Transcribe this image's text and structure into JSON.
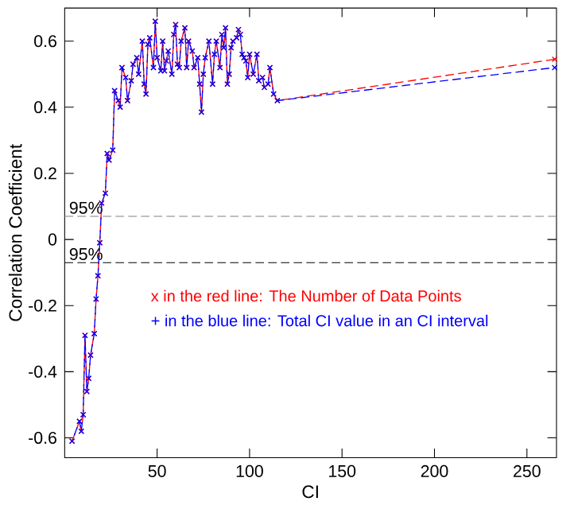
{
  "chart_data": {
    "type": "line",
    "xlabel": "CI",
    "ylabel": "Correlation Coefficient",
    "x": [
      4,
      8,
      9,
      10,
      11,
      12,
      13,
      14,
      16,
      17,
      18,
      19,
      20,
      22,
      23,
      24,
      26,
      27,
      29,
      30,
      31,
      33,
      34,
      36,
      37,
      39,
      40,
      42,
      43,
      44,
      45,
      46,
      48,
      49,
      50,
      52,
      53,
      54,
      55,
      56,
      58,
      59,
      60,
      61,
      62,
      63,
      65,
      66,
      67,
      69,
      70,
      72,
      73,
      74,
      75,
      76,
      78,
      80,
      81,
      82,
      84,
      85,
      86,
      87,
      88,
      89,
      90,
      91,
      93,
      94,
      95,
      96,
      97,
      98,
      99,
      100,
      102,
      104,
      105,
      107,
      108,
      110,
      111,
      113,
      115,
      265
    ],
    "series": [
      {
        "name": "x in the red line:  The Number of Data Points",
        "color": "#ff0000",
        "marker": "cross",
        "line_style": "dashed",
        "values": [
          -0.61,
          -0.55,
          -0.58,
          -0.53,
          -0.29,
          -0.46,
          -0.42,
          -0.35,
          -0.285,
          -0.18,
          -0.11,
          -0.01,
          0.11,
          0.14,
          0.26,
          0.24,
          0.27,
          0.45,
          0.42,
          0.4,
          0.52,
          0.49,
          0.42,
          0.48,
          0.53,
          0.55,
          0.5,
          0.6,
          0.47,
          0.44,
          0.59,
          0.61,
          0.52,
          0.66,
          0.55,
          0.51,
          0.6,
          0.51,
          0.54,
          0.57,
          0.5,
          0.62,
          0.65,
          0.53,
          0.52,
          0.6,
          0.64,
          0.52,
          0.6,
          0.57,
          0.52,
          0.55,
          0.47,
          0.385,
          0.5,
          0.55,
          0.6,
          0.47,
          0.56,
          0.6,
          0.52,
          0.62,
          0.58,
          0.64,
          0.47,
          0.5,
          0.58,
          0.6,
          0.61,
          0.635,
          0.62,
          0.56,
          0.55,
          0.54,
          0.49,
          0.56,
          0.5,
          0.56,
          0.48,
          0.49,
          0.46,
          0.47,
          0.52,
          0.44,
          0.42,
          0.545
        ]
      },
      {
        "name": "+ in the blue line: Total CI value in an CI interval",
        "color": "#0000ff",
        "marker": "cross",
        "line_style": "dashed",
        "values": [
          -0.61,
          -0.55,
          -0.58,
          -0.53,
          -0.29,
          -0.46,
          -0.42,
          -0.35,
          -0.285,
          -0.18,
          -0.11,
          -0.01,
          0.11,
          0.14,
          0.26,
          0.24,
          0.27,
          0.45,
          0.42,
          0.4,
          0.52,
          0.49,
          0.42,
          0.48,
          0.53,
          0.55,
          0.5,
          0.6,
          0.47,
          0.44,
          0.59,
          0.61,
          0.52,
          0.66,
          0.55,
          0.51,
          0.6,
          0.51,
          0.54,
          0.57,
          0.5,
          0.62,
          0.65,
          0.53,
          0.52,
          0.6,
          0.64,
          0.52,
          0.6,
          0.57,
          0.52,
          0.55,
          0.47,
          0.385,
          0.5,
          0.55,
          0.6,
          0.47,
          0.56,
          0.6,
          0.52,
          0.62,
          0.58,
          0.64,
          0.47,
          0.5,
          0.58,
          0.6,
          0.61,
          0.635,
          0.62,
          0.56,
          0.55,
          0.54,
          0.49,
          0.56,
          0.5,
          0.56,
          0.48,
          0.49,
          0.46,
          0.47,
          0.52,
          0.44,
          0.42,
          0.52
        ]
      }
    ],
    "xlim": [
      0,
      266
    ],
    "ylim": [
      -0.66,
      0.7
    ],
    "xticks": [
      50,
      100,
      150,
      200,
      250
    ],
    "yticks": [
      -0.6,
      -0.4,
      -0.2,
      0,
      0.2,
      0.4,
      0.6
    ],
    "ref_lines": [
      {
        "axis": "y",
        "value": 0.07,
        "color": "#808080",
        "line_style": "dashed"
      },
      {
        "axis": "y",
        "value": -0.07,
        "color": "#000000",
        "line_style": "dashed"
      }
    ],
    "annotations": [
      {
        "text": "95%",
        "x": 1,
        "y": 0.07
      },
      {
        "text": "95%",
        "x": 1,
        "y": -0.07
      }
    ],
    "legend": "center",
    "grid": false
  }
}
